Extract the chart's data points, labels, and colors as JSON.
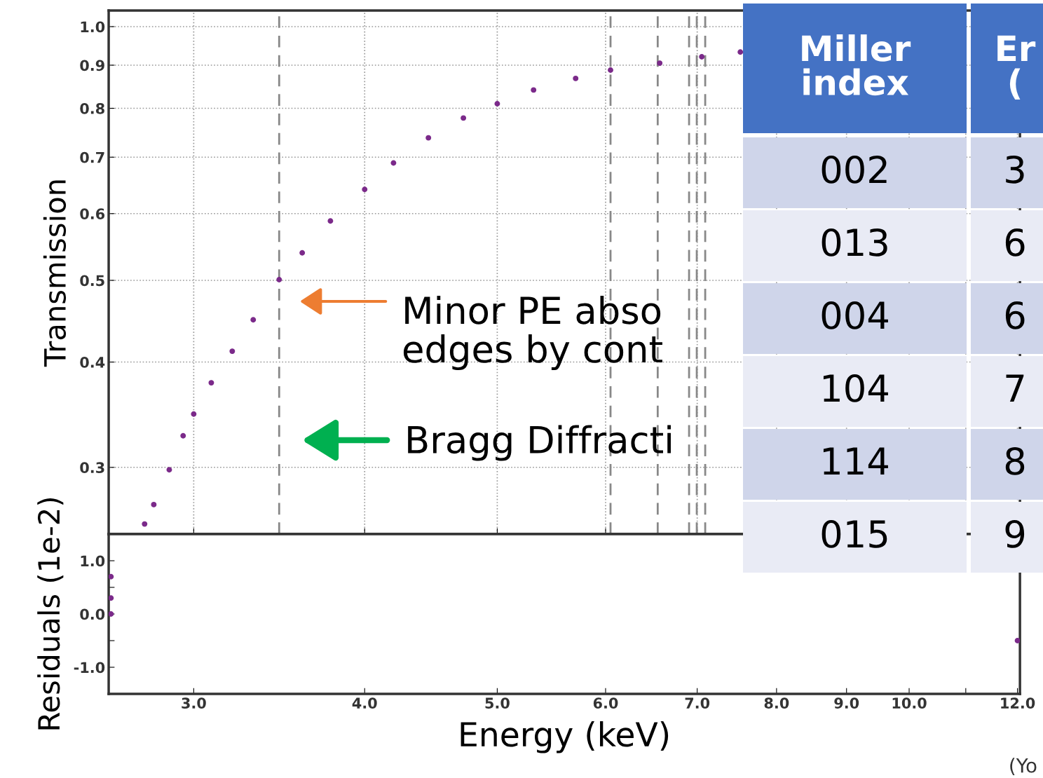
{
  "chart_data": [
    {
      "type": "scatter",
      "ylabel": "Transmission",
      "log": "xy",
      "grid": true,
      "marker": "circle",
      "tick_labels": "y",
      "xlim": [
        2.6,
        12.05
      ],
      "ylim": [
        0.25,
        1.045
      ],
      "xticks": [
        3,
        4,
        5,
        6,
        7,
        8,
        9,
        10,
        11,
        12
      ],
      "yticks": [
        {
          "value": 0.3,
          "label": "0.3"
        },
        {
          "value": 0.4,
          "label": "0.4"
        },
        {
          "value": 0.5,
          "label": "0.5"
        },
        {
          "value": 0.6,
          "label": "0.6"
        },
        {
          "value": 0.7,
          "label": "0.7"
        },
        {
          "value": 0.8,
          "label": "0.8"
        },
        {
          "value": 0.9,
          "label": "0.9"
        },
        {
          "value": 1.0,
          "label": "1.0"
        }
      ],
      "series": [
        {
          "color": "#7b2a8a",
          "x": [
            2.762,
            2.805,
            2.879,
            2.947,
            3.0,
            3.09,
            3.201,
            3.316,
            3.464,
            3.601,
            3.776,
            4.0,
            4.199,
            4.453,
            4.723,
            5.0,
            5.315,
            5.705,
            6.05,
            6.572,
            7.054,
            7.527
          ],
          "values": [
            0.257,
            0.271,
            0.298,
            0.327,
            0.347,
            0.378,
            0.412,
            0.449,
            0.501,
            0.539,
            0.588,
            0.641,
            0.689,
            0.738,
            0.779,
            0.81,
            0.841,
            0.868,
            0.888,
            0.905,
            0.921,
            0.933
          ]
        }
      ],
      "ref_lines": [
        {
          "axis": "x",
          "value": 3.464,
          "color": "#888888",
          "line_style": "dashed"
        },
        {
          "axis": "x",
          "value": 6.05,
          "color": "#888888",
          "line_style": "dashed"
        },
        {
          "axis": "x",
          "value": 6.55,
          "color": "#888888",
          "line_style": "dashed"
        },
        {
          "axis": "x",
          "value": 6.905,
          "color": "#888888",
          "line_style": "dashed"
        },
        {
          "axis": "x",
          "value": 6.995,
          "color": "#888888",
          "line_style": "dashed"
        },
        {
          "axis": "x",
          "value": 7.095,
          "color": "#888888",
          "line_style": "dashed"
        }
      ],
      "annotations": [
        "Minor PE abso\nedges by cont",
        "Bragg Diffracti",
        "Miller\nindex",
        "Er\n(",
        "002",
        "3",
        "013",
        "6",
        "004",
        "6",
        "104",
        "7",
        "114",
        "8",
        "015",
        "9",
        "(Yo"
      ]
    },
    {
      "type": "scatter",
      "xlabel": "Energy (keV)",
      "ylabel": "Residuals (1e-2)",
      "log": "x",
      "marker": "circle",
      "xlim": [
        2.6,
        12.05
      ],
      "ylim": [
        -1.5,
        1.5
      ],
      "xticks": [
        {
          "value": 3,
          "label": "3.0"
        },
        {
          "value": 4,
          "label": "4.0"
        },
        {
          "value": 5,
          "label": "5.0"
        },
        {
          "value": 6,
          "label": "6.0"
        },
        {
          "value": 7,
          "label": "7.0"
        },
        {
          "value": 8,
          "label": "8.0"
        },
        {
          "value": 9,
          "label": "9.0"
        },
        {
          "value": 10,
          "label": "10.0"
        },
        {
          "value": 11,
          "label": null
        },
        {
          "value": 12,
          "label": "12.0"
        }
      ],
      "yticks": [
        {
          "value": -1,
          "label": "-1.0"
        },
        {
          "value": -0.5,
          "label": null
        },
        {
          "value": 0,
          "label": "0.0"
        },
        {
          "value": 0.5,
          "label": null
        },
        {
          "value": 1,
          "label": "1.0"
        }
      ],
      "series": [
        {
          "color": "#7b2a8a",
          "x": [
            2.61,
            2.61,
            2.61,
            12.0
          ],
          "values": [
            0.7,
            0.3,
            0.0,
            -0.5
          ]
        }
      ]
    }
  ]
}
